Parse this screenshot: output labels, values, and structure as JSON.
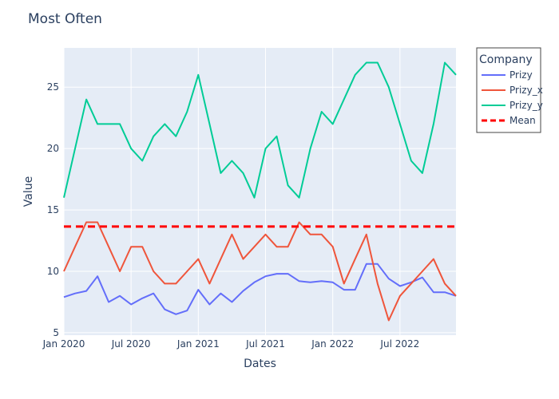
{
  "chart_data": {
    "type": "line",
    "title": "Most Often",
    "xlabel": "Dates",
    "ylabel": "Value",
    "x": [
      "2020-01",
      "2020-02",
      "2020-03",
      "2020-04",
      "2020-05",
      "2020-06",
      "2020-07",
      "2020-08",
      "2020-09",
      "2020-10",
      "2020-11",
      "2020-12",
      "2021-01",
      "2021-02",
      "2021-03",
      "2021-04",
      "2021-05",
      "2021-06",
      "2021-07",
      "2021-08",
      "2021-09",
      "2021-10",
      "2021-11",
      "2021-12",
      "2022-01",
      "2022-02",
      "2022-03",
      "2022-04",
      "2022-05",
      "2022-06",
      "2022-07",
      "2022-08",
      "2022-09",
      "2022-10",
      "2022-11",
      "2022-12"
    ],
    "x_ticks": [
      {
        "x": "2020-01",
        "label": "Jan 2020"
      },
      {
        "x": "2020-07",
        "label": "Jul 2020"
      },
      {
        "x": "2021-01",
        "label": "Jan 2021"
      },
      {
        "x": "2021-07",
        "label": "Jul 2021"
      },
      {
        "x": "2022-01",
        "label": "Jan 2022"
      },
      {
        "x": "2022-07",
        "label": "Jul 2022"
      }
    ],
    "y_ticks": [
      5,
      10,
      15,
      20,
      25
    ],
    "ylim": [
      4.8,
      28.2
    ],
    "grid": true,
    "legend": {
      "title": "Company",
      "placement": "right"
    },
    "series": [
      {
        "name": "Prizy",
        "color": "#636efa",
        "dash": "solid",
        "values": [
          7.9,
          8.2,
          8.4,
          9.6,
          7.5,
          8.0,
          7.3,
          7.8,
          8.2,
          6.9,
          6.5,
          6.8,
          8.5,
          7.3,
          8.2,
          7.5,
          8.4,
          9.1,
          9.6,
          9.8,
          9.8,
          9.2,
          9.1,
          9.2,
          9.1,
          8.5,
          8.5,
          10.6,
          10.6,
          9.4,
          8.8,
          9.1,
          9.5,
          8.3,
          8.3,
          8.0
        ]
      },
      {
        "name": "Prizy_x",
        "color": "#ef553b",
        "dash": "solid",
        "values": [
          10,
          12,
          14,
          14,
          12,
          10,
          12,
          12,
          10,
          9,
          9,
          10,
          11,
          9,
          11,
          13,
          11,
          12,
          13,
          12,
          12,
          14,
          13,
          13,
          12,
          9,
          11,
          13,
          9,
          6,
          8,
          9,
          10,
          11,
          9,
          8
        ]
      },
      {
        "name": "Prizy_y",
        "color": "#00cc96",
        "dash": "solid",
        "values": [
          16,
          20,
          24,
          22,
          22,
          22,
          20,
          19,
          21,
          22,
          21,
          23,
          26,
          22,
          18,
          19,
          18,
          16,
          20,
          21,
          17,
          16,
          20,
          23,
          22,
          24,
          26,
          27,
          27,
          25,
          22,
          19,
          18,
          22,
          27,
          26
        ]
      },
      {
        "name": "Mean",
        "color": "#ff0000",
        "dash": "dash",
        "constant": 13.65
      }
    ]
  }
}
